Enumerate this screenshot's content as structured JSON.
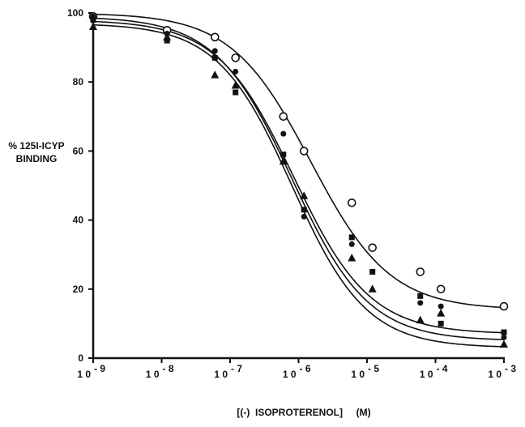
{
  "chart_data": {
    "type": "scatter",
    "title": "",
    "xlabel": "[(-)  ISOPROTERENOL]     (M)",
    "ylabel_lines": [
      "% 125I-ICYP",
      "BINDING"
    ],
    "x_scale": "log",
    "xlim": [
      1e-09,
      0.001
    ],
    "ylim": [
      0,
      100
    ],
    "x_ticks": [
      {
        "value": 1e-09,
        "base": "1 0",
        "exp": "- 9"
      },
      {
        "value": 1e-08,
        "base": "1 0",
        "exp": "- 8"
      },
      {
        "value": 1e-07,
        "base": "1 0",
        "exp": "- 7"
      },
      {
        "value": 1e-06,
        "base": "1 0",
        "exp": "- 6"
      },
      {
        "value": 1e-05,
        "base": "1 0",
        "exp": "- 5"
      },
      {
        "value": 0.0001,
        "base": "1 0",
        "exp": "- 4"
      },
      {
        "value": 0.001,
        "base": "1 0",
        "exp": "- 3"
      }
    ],
    "y_ticks": [
      "0",
      "20",
      "40",
      "60",
      "80",
      "100"
    ],
    "grid": false,
    "legend": "none",
    "series": [
      {
        "marker": "open-circle",
        "points": [
          [
            1e-09,
            99
          ],
          [
            1.2e-08,
            95
          ],
          [
            6e-08,
            93
          ],
          [
            1.2e-07,
            87
          ],
          [
            6e-07,
            70
          ],
          [
            1.2e-06,
            60
          ],
          [
            6e-06,
            45
          ],
          [
            1.2e-05,
            32
          ],
          [
            6e-05,
            25
          ],
          [
            0.00012,
            20
          ],
          [
            0.001,
            15
          ]
        ],
        "curve": {
          "top": 100,
          "bottom": 14,
          "ic50": 1.5e-06,
          "slope": 0.75
        }
      },
      {
        "marker": "filled-circle",
        "points": [
          [
            1e-09,
            99
          ],
          [
            1.2e-08,
            94
          ],
          [
            6e-08,
            89
          ],
          [
            1.2e-07,
            83
          ],
          [
            6e-07,
            65
          ],
          [
            1.2e-06,
            41
          ],
          [
            6e-06,
            33
          ],
          [
            1.2e-05,
            25
          ],
          [
            6e-05,
            16
          ],
          [
            0.00012,
            15
          ],
          [
            0.001,
            6
          ]
        ],
        "curve": {
          "top": 99,
          "bottom": 5,
          "ic50": 8e-07,
          "slope": 0.78
        }
      },
      {
        "marker": "filled-square",
        "points": [
          [
            1e-09,
            98
          ],
          [
            1.2e-08,
            92
          ],
          [
            6e-08,
            87
          ],
          [
            1.2e-07,
            77
          ],
          [
            6e-07,
            59
          ],
          [
            1.2e-06,
            43
          ],
          [
            6e-06,
            35
          ],
          [
            1.2e-05,
            25
          ],
          [
            6e-05,
            18
          ],
          [
            0.00012,
            10
          ],
          [
            0.001,
            7.5
          ]
        ],
        "curve": {
          "top": 98,
          "bottom": 7,
          "ic50": 8.5e-07,
          "slope": 0.78
        }
      },
      {
        "marker": "filled-triangle",
        "points": [
          [
            1e-09,
            96
          ],
          [
            1.2e-08,
            93
          ],
          [
            6e-08,
            82
          ],
          [
            1.2e-07,
            79
          ],
          [
            6e-07,
            57
          ],
          [
            1.2e-06,
            47
          ],
          [
            6e-06,
            29
          ],
          [
            1.2e-05,
            20
          ],
          [
            6e-05,
            11
          ],
          [
            0.00012,
            13
          ],
          [
            0.001,
            4
          ]
        ],
        "curve": {
          "top": 97,
          "bottom": 3,
          "ic50": 8e-07,
          "slope": 0.8
        }
      }
    ]
  }
}
